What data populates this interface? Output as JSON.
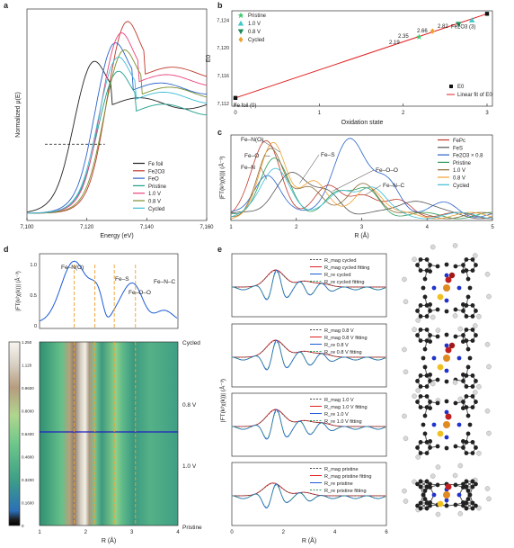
{
  "panel_labels": [
    "a",
    "b",
    "c",
    "d",
    "e"
  ],
  "chart_data": [
    {
      "panel": "a",
      "type": "line",
      "xlabel": "Energy (eV)",
      "ylabel": "Normalized μ(E)",
      "xlim": [
        7100,
        7160
      ],
      "x_ticks": [
        "7,100",
        "7,120",
        "7,140",
        "7,160"
      ],
      "legend_position": "bottom-right",
      "series": [
        {
          "name": "Fe foil",
          "color": "#222222",
          "edge": 7114,
          "peak": 1.02
        },
        {
          "name": "Fe2O3",
          "color": "#c0392b",
          "edge": 7125,
          "peak": 1.3
        },
        {
          "name": "FeO",
          "color": "#2b62c8",
          "edge": 7121,
          "peak": 1.15
        },
        {
          "name": "Pristine",
          "color": "#1e9e8c",
          "edge": 7122,
          "peak": 0.95
        },
        {
          "name": "1.0 V",
          "color": "#e9437d",
          "edge": 7123,
          "peak": 1.22
        },
        {
          "name": "0.8 V",
          "color": "#7a8f2e",
          "edge": 7124,
          "peak": 1.1
        },
        {
          "name": "Cycled",
          "color": "#3bbcd6",
          "edge": 7122,
          "peak": 1.05
        }
      ]
    },
    {
      "panel": "b",
      "type": "scatter",
      "xlabel": "Oxidation state",
      "ylabel": "E0",
      "xlim": [
        0,
        3
      ],
      "ylim": [
        7112,
        7124
      ],
      "x_ticks": [
        "0",
        "1",
        "2",
        "3"
      ],
      "y_ticks": [
        "7,112",
        "7,116",
        "7,120",
        "7,124"
      ],
      "points": [
        {
          "label": "Fe foil (0)",
          "x": 0,
          "y": 7112.8,
          "marker": "square",
          "color": "#111111"
        },
        {
          "label": "Fe2O3 (3)",
          "x": 3,
          "y": 7124.9,
          "marker": "square",
          "color": "#111111"
        },
        {
          "label": "Pristine",
          "x": 2.19,
          "y": 7121.6,
          "marker": "star",
          "color": "#3ec96b"
        },
        {
          "label": "1.0 V",
          "x": 2.82,
          "y": 7124.0,
          "marker": "triangle",
          "color": "#3ec9c9"
        },
        {
          "label": "0.8 V",
          "x": 2.66,
          "y": 7123.4,
          "marker": "triangle-down",
          "color": "#1e8a5a"
        },
        {
          "label": "Cycled",
          "x": 2.35,
          "y": 7122.4,
          "marker": "diamond",
          "color": "#f0a030"
        }
      ],
      "fit_line": {
        "x": [
          0,
          3
        ],
        "y": [
          7112.8,
          7124.9
        ],
        "color": "#e02020"
      },
      "annotations": [
        "2.35",
        "2.19",
        "2.66",
        "2.82",
        "Fe foil (0)",
        "Fe2O3 (3)"
      ],
      "legend_top": [
        "Pristine",
        "1.0 V",
        "0.8 V",
        "Cycled"
      ],
      "legend_bottom": [
        "E0",
        "Linear fit of E0"
      ]
    },
    {
      "panel": "c",
      "type": "line",
      "xlabel": "R (Å)",
      "ylabel": "|FT(k²χ(k))| (Å⁻³)",
      "xlim": [
        1,
        5
      ],
      "x_ticks": [
        "1",
        "2",
        "3",
        "4",
        "5"
      ],
      "series": [
        {
          "name": "FePc",
          "color": "#c0392b"
        },
        {
          "name": "FeS",
          "color": "#555555"
        },
        {
          "name": "Fe2O3 × 0.8",
          "color": "#2b62c8"
        },
        {
          "name": "Pristine",
          "color": "#2e9c5a"
        },
        {
          "name": "1.0 V",
          "color": "#8a6d3b"
        },
        {
          "name": "0.8 V",
          "color": "#f0a030"
        },
        {
          "name": "Cycled",
          "color": "#3bbcd6"
        }
      ],
      "annotations": [
        "Fe–N(O)",
        "Fe–O",
        "Fe–N",
        "Fe–S",
        "Fe–O–O",
        "Fe–N–C"
      ]
    },
    {
      "panel": "d-top",
      "type": "line",
      "xlabel": "",
      "ylabel": "|FT(k²χ(k))| (Å⁻³)",
      "xlim": [
        1,
        4
      ],
      "ylim": [
        0,
        1.1
      ],
      "y_ticks": [
        "0",
        "0.5",
        "1.0"
      ],
      "annotations": [
        "Fe–N(O)",
        "Fe–S",
        "Fe–O–O",
        "Fe–N–C"
      ],
      "marker_lines_R": [
        1.75,
        2.2,
        2.62,
        3.08
      ]
    },
    {
      "panel": "d-map",
      "type": "heatmap",
      "xlabel": "R (Å)",
      "xlim": [
        1,
        4
      ],
      "x_ticks": [
        "1",
        "2",
        "3",
        "4"
      ],
      "colorbar_ticks": [
        "0",
        "0.1600",
        "0.3200",
        "0.4800",
        "0.6400",
        "0.8000",
        "0.9600",
        "1.120",
        "1.250"
      ],
      "right_labels": [
        "Cycled",
        "0.8 V",
        "1.0 V",
        "Pristine"
      ],
      "marker_lines_R": [
        1.75,
        2.2,
        2.62,
        3.08
      ]
    },
    {
      "panel": "e",
      "type": "line",
      "xlabel": "R (Å)",
      "ylabel": "|FT(k²χ(k))| (Å⁻³)",
      "xlim": [
        0,
        6
      ],
      "x_ticks": [
        "0",
        "2",
        "4",
        "6"
      ],
      "subplots": [
        {
          "legend": [
            "R_mag cycled",
            "R_mag cycled fitting",
            "R_re cycled",
            "R_re cycled fitting"
          ]
        },
        {
          "legend": [
            "R_mag 0.8 V",
            "R_mag 0.8 V fitting",
            "R_re 0.8 V",
            "R_re 0.8 V fitting"
          ]
        },
        {
          "legend": [
            "R_mag 1.0 V",
            "R_mag 1.0 V fitting",
            "R_re 1.0 V",
            "R_re 1.0 V fitting"
          ]
        },
        {
          "legend": [
            "R_mag pristine",
            "R_mag pristine fitting",
            "R_re pristine",
            "R_re pristine fitting"
          ]
        }
      ],
      "colors": {
        "mag": "#e02020",
        "re": "#1e5bd6",
        "mag_fit": "#444444",
        "re_fit": "#2e9c5a"
      }
    }
  ]
}
